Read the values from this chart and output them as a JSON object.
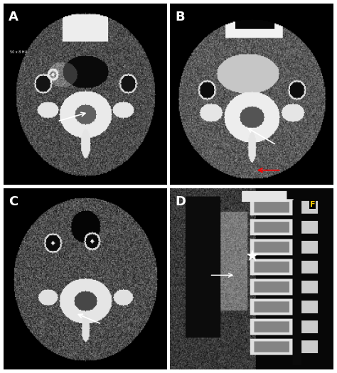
{
  "figure_bg": "#ffffff",
  "panel_bg": "#000000",
  "panel_labels": [
    "A",
    "B",
    "C",
    "D"
  ],
  "label_color": "#ffffff",
  "label_fontsize": 13,
  "annotation_color_white": "#ffffff",
  "annotation_color_red": "#cc0000",
  "panel_A_text": "50 x 8 HU",
  "panel_D_text": "F",
  "panel_D_text_color": "#ffcc00",
  "figsize": [
    4.74,
    5.25
  ],
  "dpi": 100
}
